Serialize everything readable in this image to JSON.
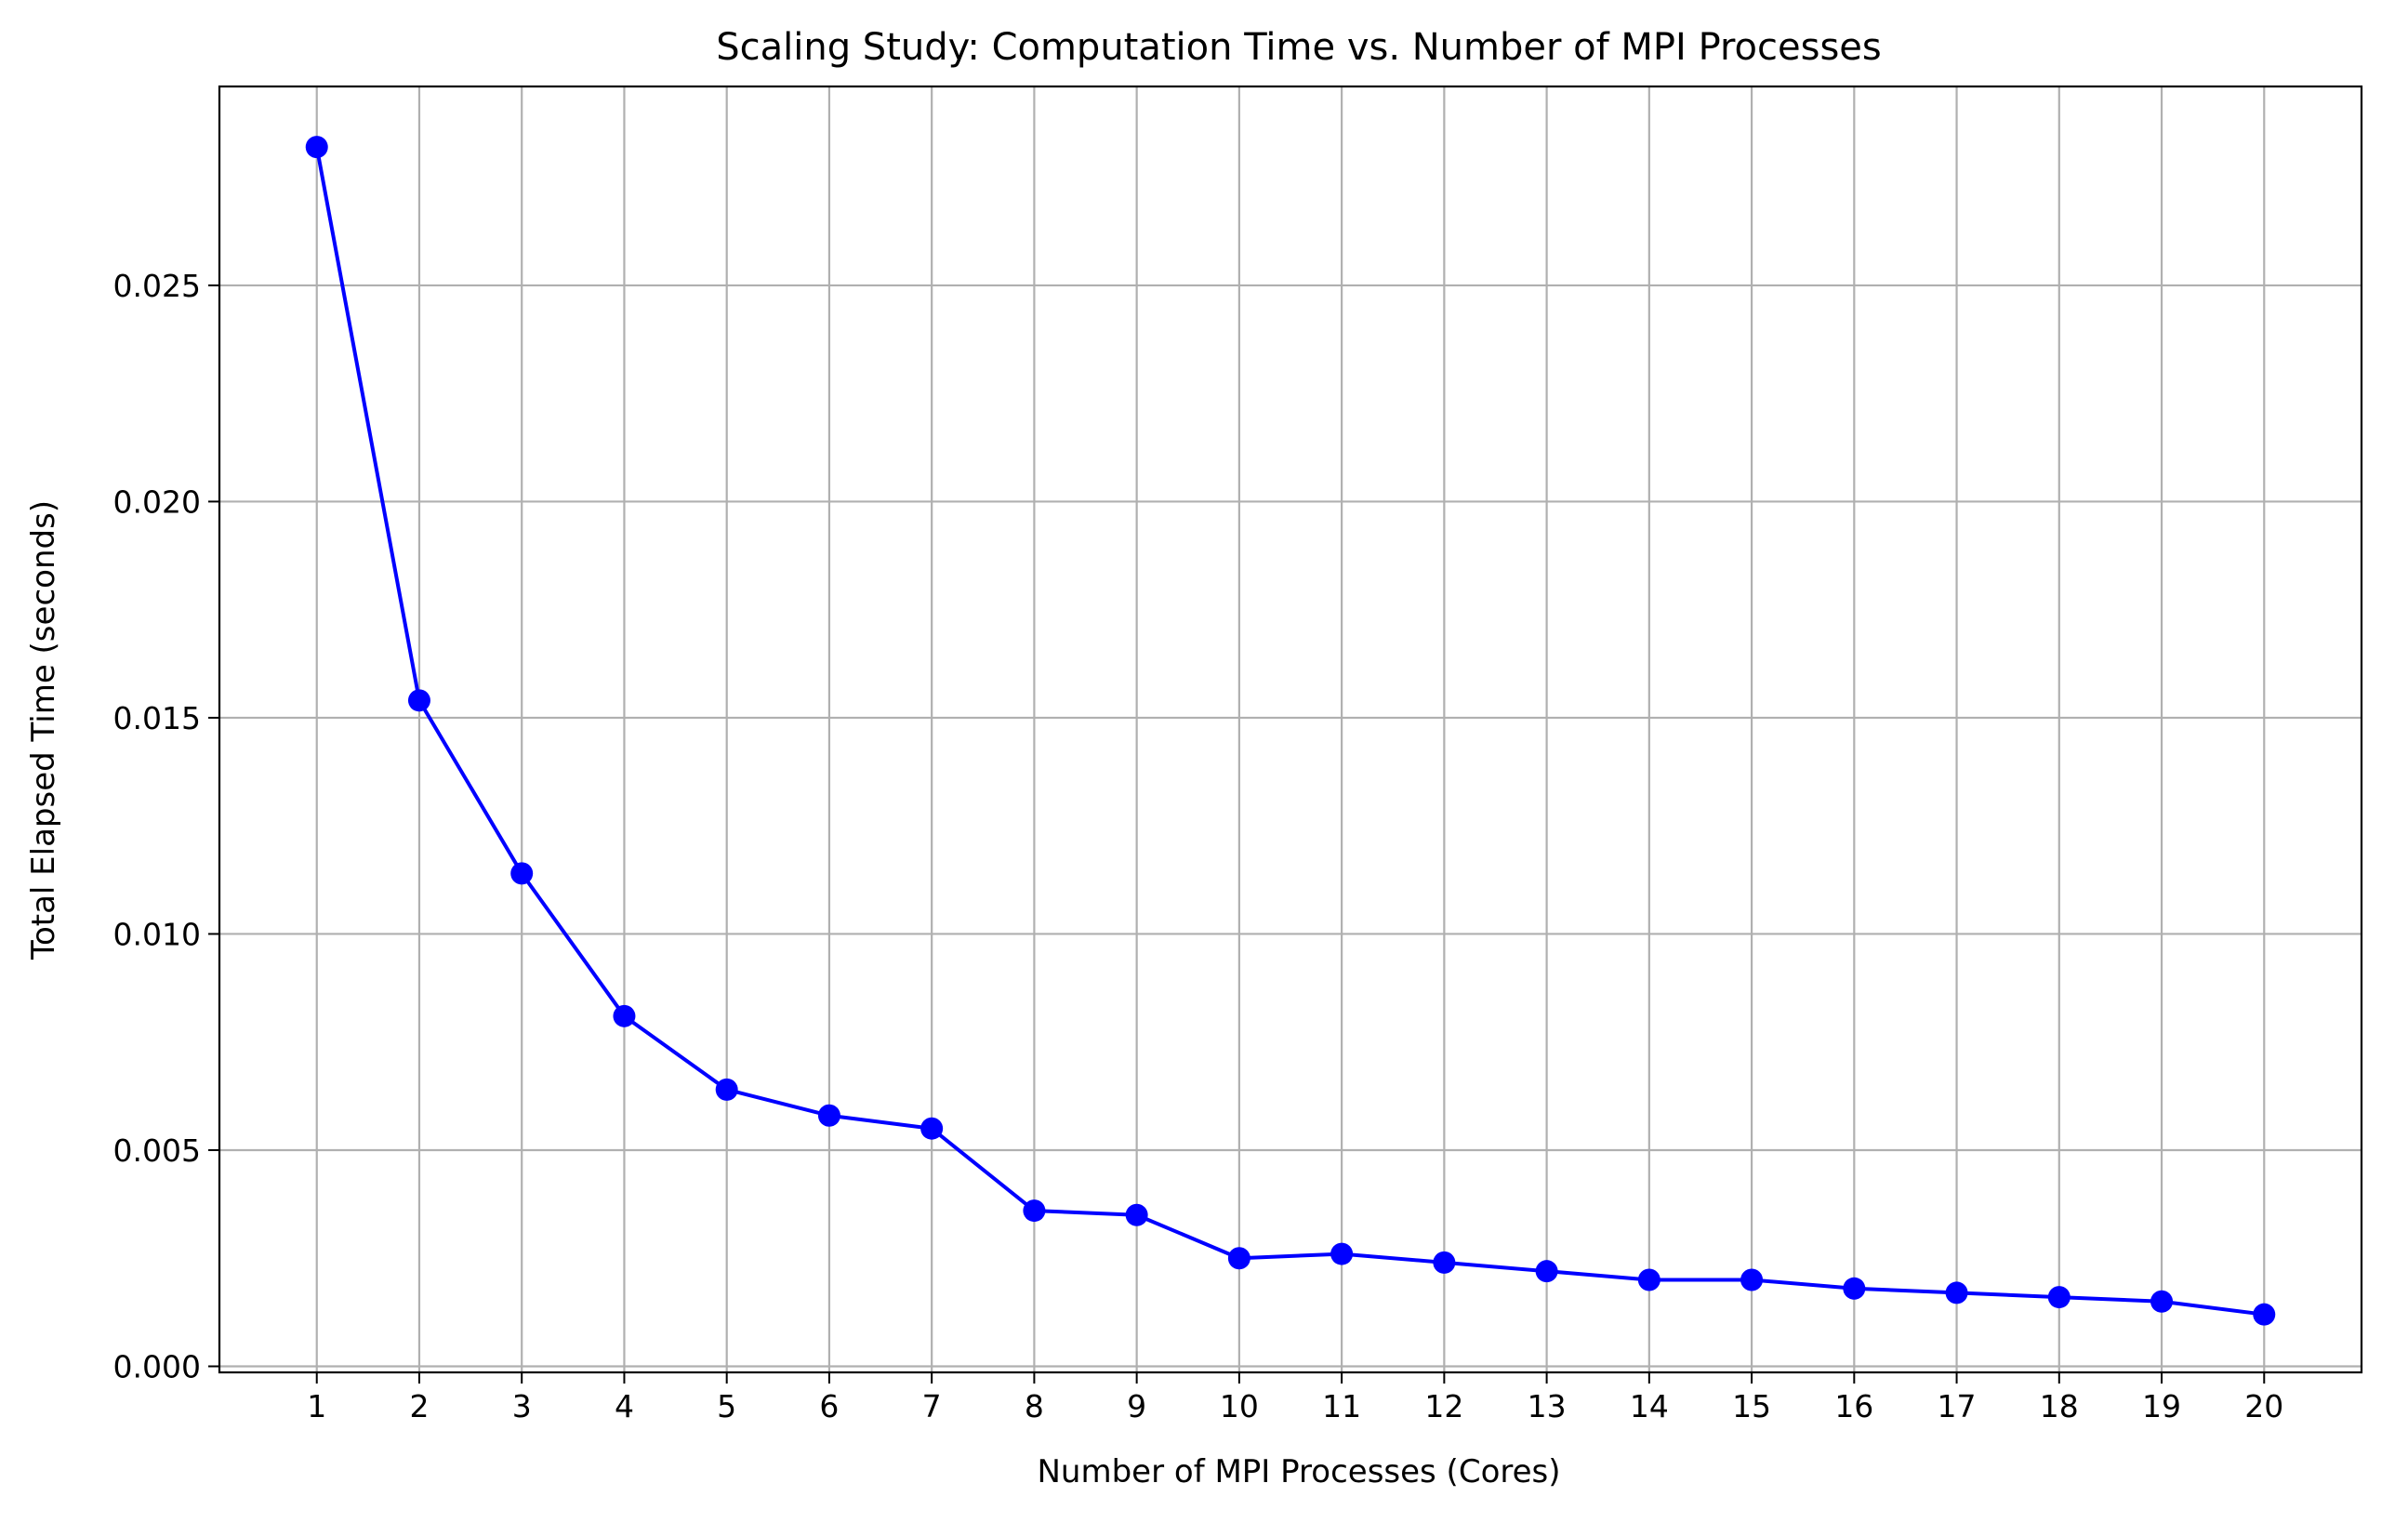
{
  "chart_data": {
    "type": "line",
    "title": "Scaling Study: Computation Time vs. Number of MPI Processes",
    "xlabel": "Number of MPI Processes (Cores)",
    "ylabel": "Total Elapsed Time (seconds)",
    "x": [
      1,
      2,
      3,
      4,
      5,
      6,
      7,
      8,
      9,
      10,
      11,
      12,
      13,
      14,
      15,
      16,
      17,
      18,
      19,
      20
    ],
    "x_tick_labels": [
      "1",
      "2",
      "3",
      "4",
      "5",
      "6",
      "7",
      "8",
      "9",
      "10",
      "11",
      "12",
      "13",
      "14",
      "15",
      "16",
      "17",
      "18",
      "19",
      "20"
    ],
    "y_ticks": [
      0.0,
      0.005,
      0.01,
      0.015,
      0.02,
      0.025
    ],
    "y_tick_labels": [
      "0.000",
      "0.005",
      "0.010",
      "0.015",
      "0.020",
      "0.025"
    ],
    "series": [
      {
        "values": [
          0.0282,
          0.0154,
          0.0114,
          0.0081,
          0.0064,
          0.0058,
          0.0055,
          0.0036,
          0.0035,
          0.0025,
          0.0026,
          0.0024,
          0.0022,
          0.002,
          0.002,
          0.0018,
          0.0017,
          0.0016,
          0.0015,
          0.0012
        ],
        "color": "#0000ff",
        "marker": "circle"
      }
    ],
    "xlim": [
      0.05,
      20.95
    ],
    "ylim": [
      -0.00014,
      0.0296
    ],
    "grid": true,
    "grid_color": "#b0b0b0",
    "legend": "none"
  }
}
